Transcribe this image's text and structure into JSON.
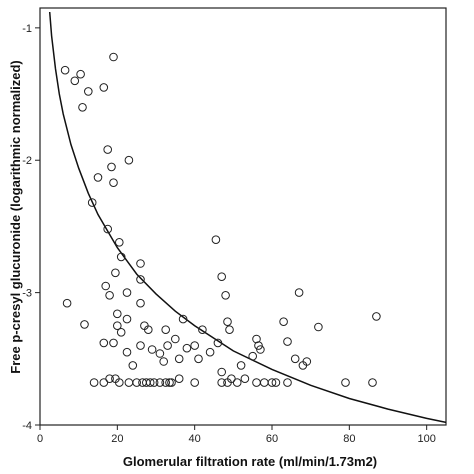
{
  "chart_data": {
    "type": "scatter",
    "title": "",
    "xlabel": "Glomerular filtration rate (ml/min/1.73m2)",
    "ylabel": "Free p-cresyl glucuronide (logarithmic normalized)",
    "xlim": [
      0,
      105
    ],
    "ylim": [
      -4,
      -0.85
    ],
    "x_ticks": [
      0,
      20,
      40,
      60,
      80,
      100
    ],
    "y_ticks": [
      -1,
      -2,
      -3,
      -4
    ],
    "x_tick_labels": [
      "0",
      "20",
      "40",
      "60",
      "80",
      "100"
    ],
    "y_tick_labels": [
      "-1",
      "-2",
      "-3",
      "-4"
    ],
    "grid": false,
    "legend": "none",
    "marker": "open-circle",
    "points": [
      [
        6.5,
        -1.32
      ],
      [
        9,
        -1.4
      ],
      [
        10.5,
        -1.35
      ],
      [
        12.5,
        -1.48
      ],
      [
        16.5,
        -1.45
      ],
      [
        11,
        -1.6
      ],
      [
        19,
        -1.22
      ],
      [
        15,
        -2.13
      ],
      [
        17.5,
        -1.92
      ],
      [
        18.5,
        -2.05
      ],
      [
        19,
        -2.17
      ],
      [
        23,
        -2.0
      ],
      [
        13.5,
        -2.32
      ],
      [
        17.5,
        -2.52
      ],
      [
        20.5,
        -2.62
      ],
      [
        21,
        -2.73
      ],
      [
        26,
        -2.78
      ],
      [
        19.5,
        -2.85
      ],
      [
        26,
        -2.9
      ],
      [
        17,
        -2.95
      ],
      [
        22.5,
        -3.0
      ],
      [
        18,
        -3.02
      ],
      [
        7,
        -3.08
      ],
      [
        26,
        -3.08
      ],
      [
        20,
        -3.16
      ],
      [
        22.5,
        -3.2
      ],
      [
        11.5,
        -3.24
      ],
      [
        20,
        -3.25
      ],
      [
        27,
        -3.25
      ],
      [
        28,
        -3.28
      ],
      [
        16.5,
        -3.38
      ],
      [
        21,
        -3.3
      ],
      [
        22.5,
        -3.45
      ],
      [
        24,
        -3.55
      ],
      [
        19,
        -3.38
      ],
      [
        26,
        -3.4
      ],
      [
        29,
        -3.43
      ],
      [
        31,
        -3.46
      ],
      [
        33,
        -3.4
      ],
      [
        32.5,
        -3.28
      ],
      [
        35,
        -3.35
      ],
      [
        36,
        -3.5
      ],
      [
        32,
        -3.52
      ],
      [
        38,
        -3.42
      ],
      [
        37,
        -3.2
      ],
      [
        42,
        -3.28
      ],
      [
        40,
        -3.4
      ],
      [
        41,
        -3.5
      ],
      [
        44,
        -3.45
      ],
      [
        46,
        -3.38
      ],
      [
        45.5,
        -2.6
      ],
      [
        47,
        -2.88
      ],
      [
        48,
        -3.02
      ],
      [
        48.5,
        -3.22
      ],
      [
        49,
        -3.28
      ],
      [
        47,
        -3.6
      ],
      [
        49.5,
        -3.65
      ],
      [
        52,
        -3.55
      ],
      [
        55,
        -3.48
      ],
      [
        56,
        -3.35
      ],
      [
        57,
        -3.43
      ],
      [
        56.5,
        -3.4
      ],
      [
        63,
        -3.22
      ],
      [
        64,
        -3.37
      ],
      [
        66,
        -3.5
      ],
      [
        67,
        -3.0
      ],
      [
        68,
        -3.55
      ],
      [
        69,
        -3.52
      ],
      [
        72,
        -3.26
      ],
      [
        87,
        -3.18
      ],
      [
        14,
        -3.68
      ],
      [
        16.5,
        -3.68
      ],
      [
        18,
        -3.65
      ],
      [
        19.5,
        -3.65
      ],
      [
        20.5,
        -3.68
      ],
      [
        23,
        -3.68
      ],
      [
        25,
        -3.68
      ],
      [
        26.5,
        -3.68
      ],
      [
        27.5,
        -3.68
      ],
      [
        28.5,
        -3.68
      ],
      [
        29.5,
        -3.68
      ],
      [
        31,
        -3.68
      ],
      [
        32.5,
        -3.68
      ],
      [
        33.5,
        -3.68
      ],
      [
        34,
        -3.68
      ],
      [
        36,
        -3.65
      ],
      [
        40,
        -3.68
      ],
      [
        47,
        -3.68
      ],
      [
        48.5,
        -3.68
      ],
      [
        51,
        -3.68
      ],
      [
        53,
        -3.65
      ],
      [
        56,
        -3.68
      ],
      [
        58,
        -3.68
      ],
      [
        60,
        -3.68
      ],
      [
        61,
        -3.68
      ],
      [
        64,
        -3.68
      ],
      [
        79,
        -3.68
      ],
      [
        86,
        -3.68
      ]
    ],
    "curve_label": "",
    "curve": [
      [
        2.5,
        -0.88
      ],
      [
        3,
        -1.06
      ],
      [
        4,
        -1.31
      ],
      [
        5,
        -1.5
      ],
      [
        6,
        -1.65
      ],
      [
        8,
        -1.88
      ],
      [
        10,
        -2.06
      ],
      [
        12.5,
        -2.25
      ],
      [
        15,
        -2.41
      ],
      [
        20,
        -2.66
      ],
      [
        25,
        -2.86
      ],
      [
        30,
        -3.01
      ],
      [
        35,
        -3.14
      ],
      [
        40,
        -3.25
      ],
      [
        50,
        -3.44
      ],
      [
        60,
        -3.58
      ],
      [
        70,
        -3.7
      ],
      [
        80,
        -3.8
      ],
      [
        90,
        -3.88
      ],
      [
        100,
        -3.95
      ],
      [
        105,
        -3.98
      ]
    ]
  }
}
